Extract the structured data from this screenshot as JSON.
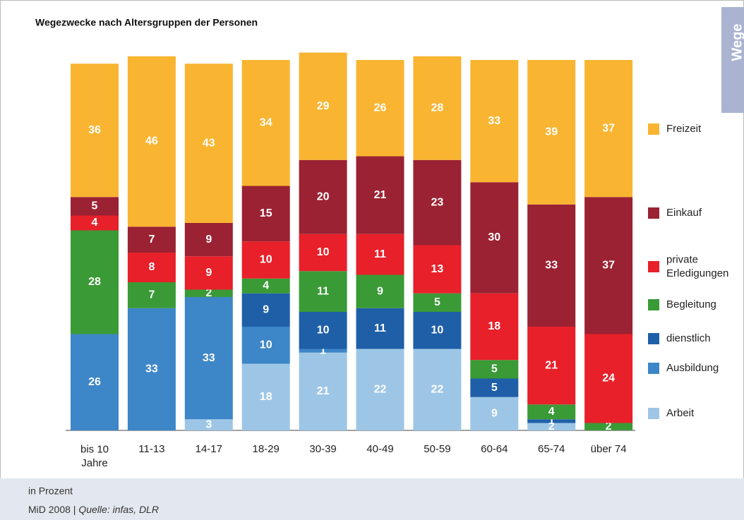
{
  "chart_data": {
    "type": "stacked-bar",
    "title": "Wegezwecke nach Altersgruppen der Personen",
    "tab": "Wege",
    "categories": [
      "bis 10\nJahre",
      "11-13",
      "14-17",
      "18-29",
      "30-39",
      "40-49",
      "50-59",
      "60-64",
      "65-74",
      "über 74"
    ],
    "series": [
      {
        "name": "Arbeit",
        "color": "#9dc6e6",
        "values": [
          0,
          0,
          3,
          18,
          21,
          22,
          22,
          9,
          2,
          0
        ]
      },
      {
        "name": "Ausbildung",
        "color": "#3d86c8",
        "values": [
          26,
          33,
          33,
          10,
          1,
          0,
          0,
          0,
          0,
          0
        ]
      },
      {
        "name": "dienstlich",
        "color": "#1f5fa8",
        "values": [
          0,
          0,
          0,
          9,
          10,
          11,
          10,
          5,
          1,
          0
        ]
      },
      {
        "name": "Begleitung",
        "color": "#3a9a36",
        "values": [
          28,
          7,
          2,
          4,
          11,
          9,
          5,
          5,
          4,
          2
        ]
      },
      {
        "name": "private\nErledigungen",
        "color": "#e8202a",
        "values": [
          4,
          8,
          9,
          10,
          10,
          11,
          13,
          18,
          21,
          24
        ]
      },
      {
        "name": "Einkauf",
        "color": "#9b2232",
        "values": [
          5,
          7,
          9,
          15,
          20,
          21,
          23,
          30,
          33,
          37
        ]
      },
      {
        "name": "Freizeit",
        "color": "#f9b531",
        "values": [
          36,
          46,
          43,
          34,
          29,
          26,
          28,
          33,
          39,
          37
        ]
      }
    ],
    "note": "in Prozent",
    "source_prefix": "MiD 2008 |",
    "source": "Quelle: infas, DLR"
  }
}
